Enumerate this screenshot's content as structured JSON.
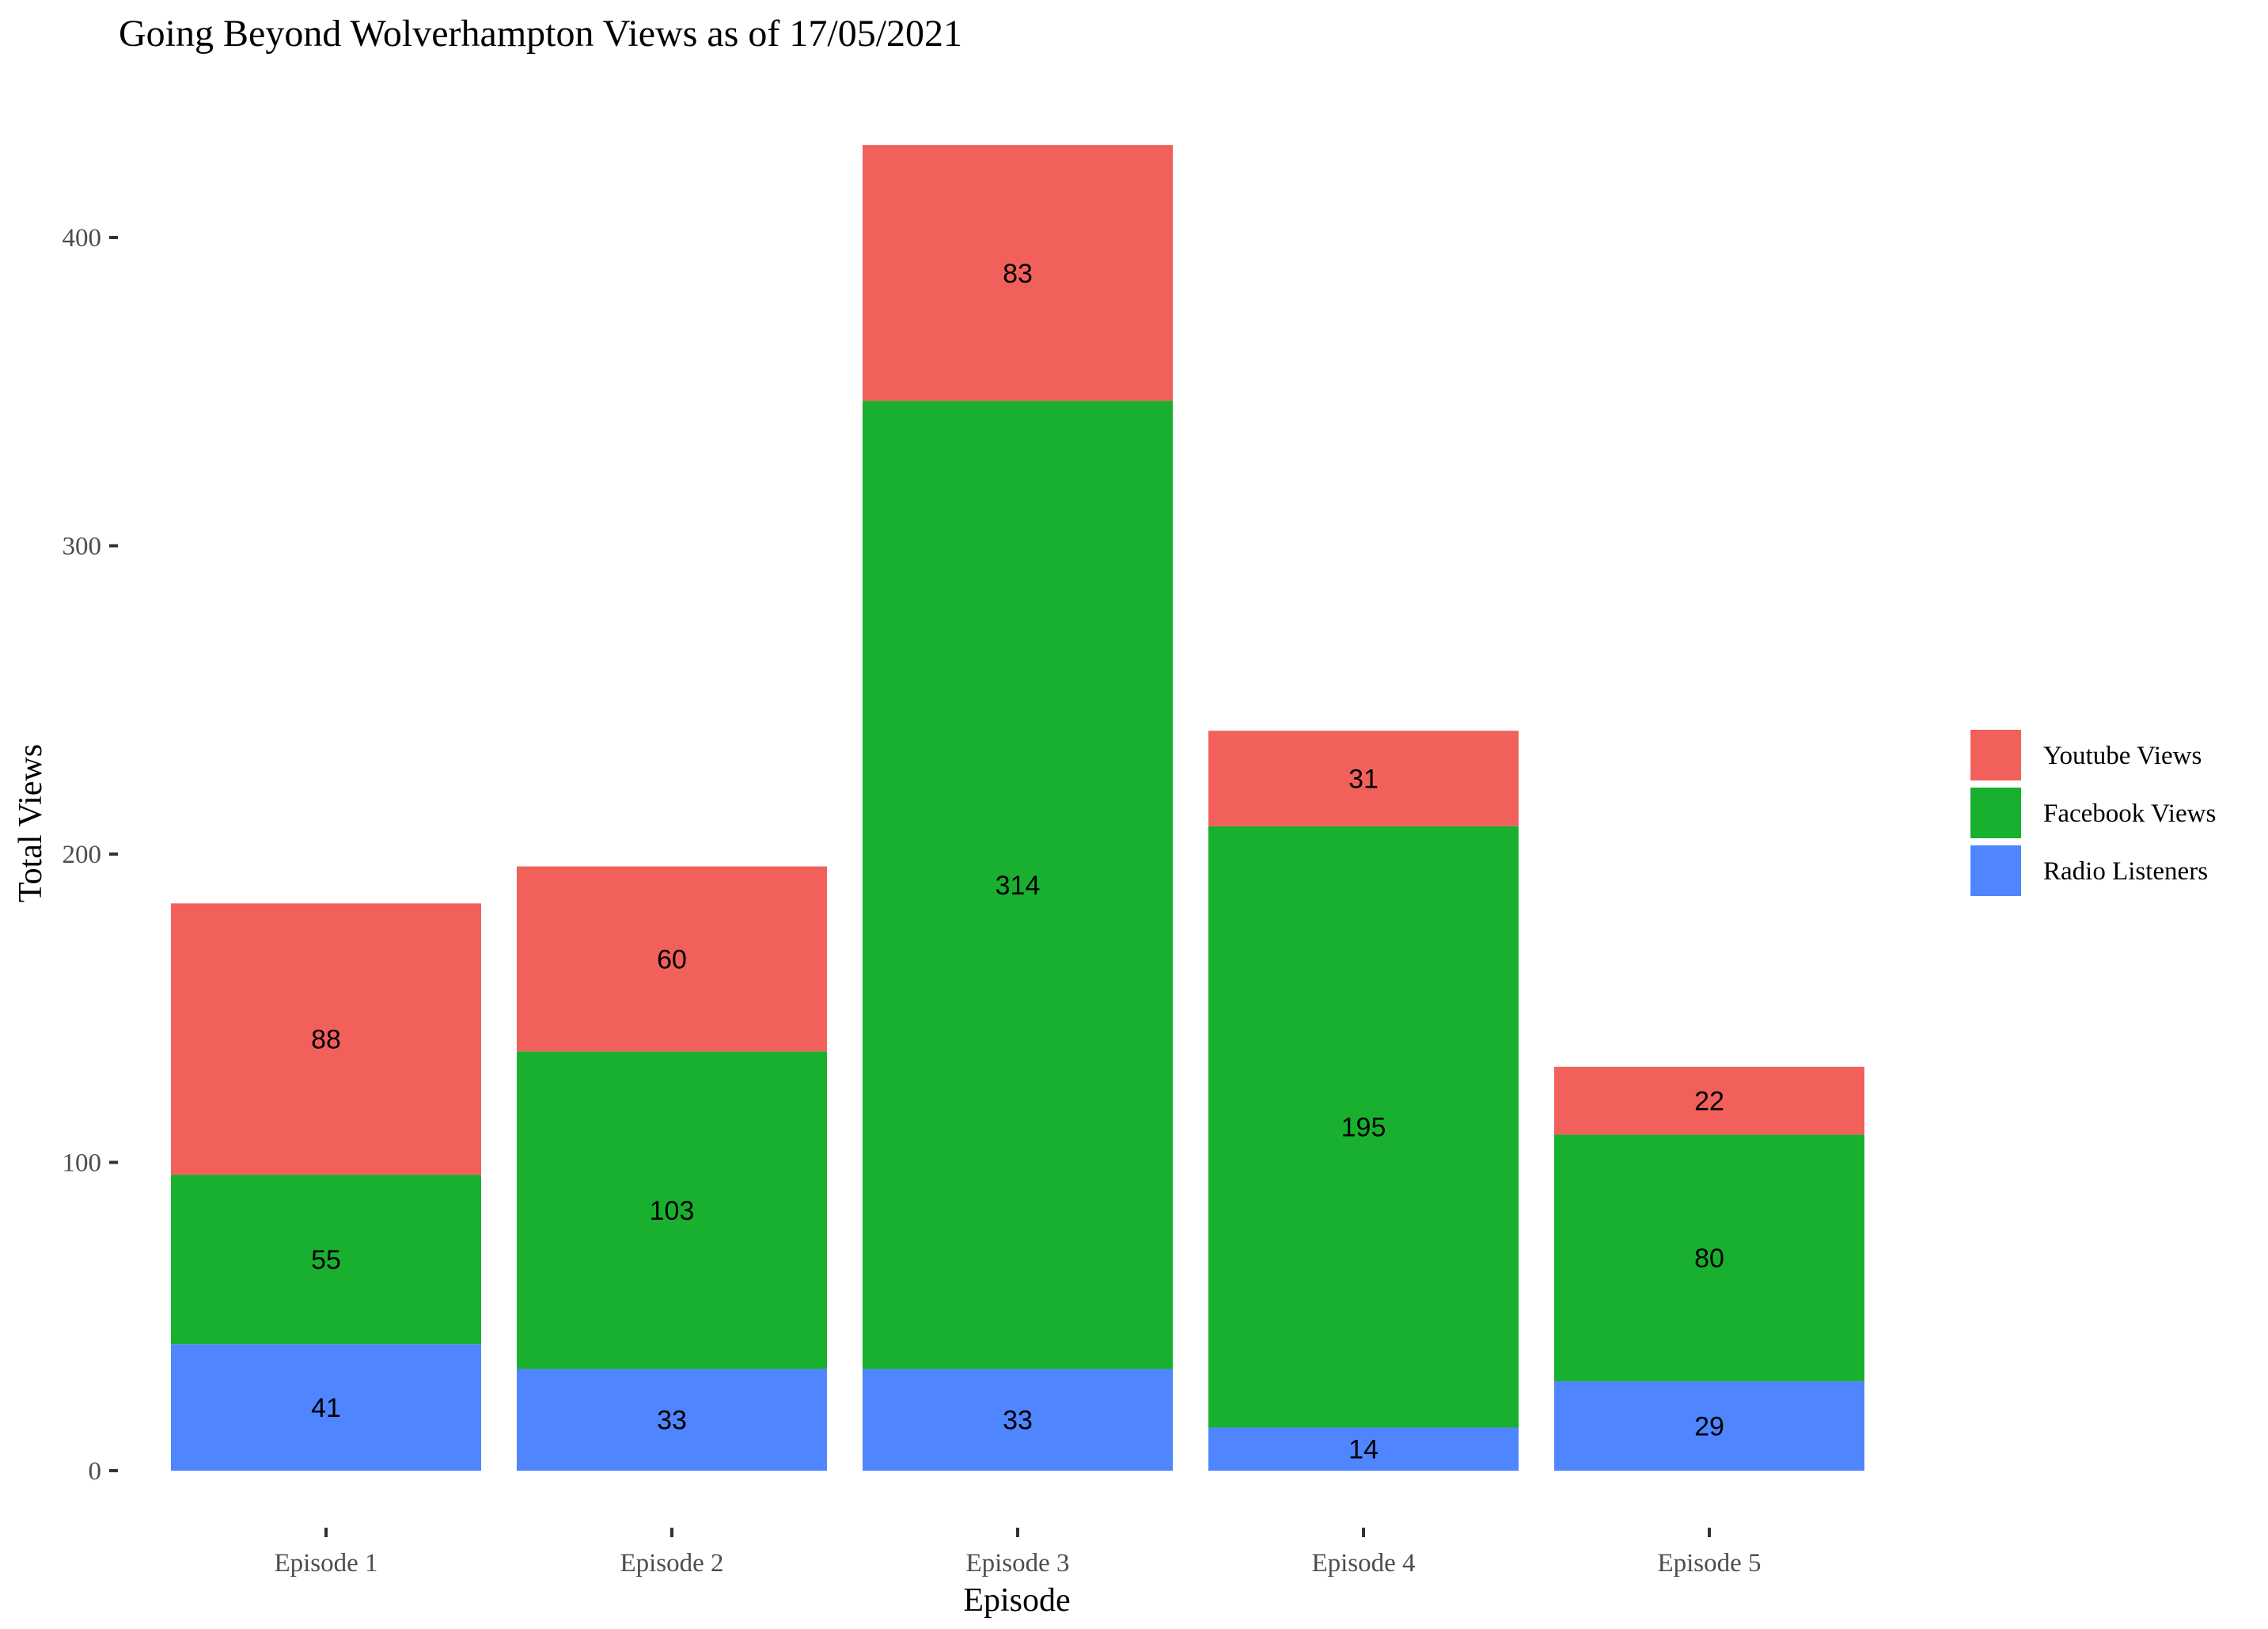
{
  "chart_data": {
    "type": "bar",
    "stacked": true,
    "title": "Going Beyond Wolverhampton Views as of 17/05/2021",
    "xlabel": "Episode",
    "ylabel": "Total Views",
    "categories": [
      "Episode 1",
      "Episode 2",
      "Episode 3",
      "Episode 4",
      "Episode 5"
    ],
    "ylim": [
      0,
      430
    ],
    "yticks": [
      0,
      100,
      200,
      300,
      400
    ],
    "grid": false,
    "legend_position": "right",
    "series": [
      {
        "name": "Radio Listeners",
        "color": "#4F85FF",
        "values": [
          41,
          33,
          33,
          14,
          29
        ]
      },
      {
        "name": "Facebook Views",
        "color": "#19B02F",
        "values": [
          55,
          103,
          314,
          195,
          80
        ]
      },
      {
        "name": "Youtube Views",
        "color": "#F2605B",
        "values": [
          88,
          60,
          83,
          31,
          22
        ]
      }
    ],
    "legend_order": [
      "Youtube Views",
      "Facebook Views",
      "Radio Listeners"
    ]
  }
}
